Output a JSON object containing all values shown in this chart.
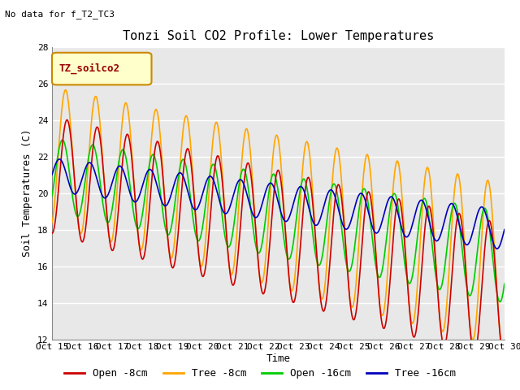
{
  "title": "Tonzi Soil CO2 Profile: Lower Temperatures",
  "subtitle": "No data for f_T2_TC3",
  "ylabel": "Soil Temperatures (C)",
  "xlabel": "Time",
  "ylim": [
    12,
    28
  ],
  "xlim": [
    0,
    15
  ],
  "xtick_labels": [
    "Oct 15",
    "Oct 16",
    "Oct 17",
    "Oct 18",
    "Oct 19",
    "Oct 20",
    "Oct 21",
    "Oct 22",
    "Oct 23",
    "Oct 24",
    "Oct 25",
    "Oct 26",
    "Oct 27",
    "Oct 28",
    "Oct 29",
    "Oct 30"
  ],
  "ytick_vals": [
    12,
    14,
    16,
    18,
    20,
    22,
    24,
    26,
    28
  ],
  "legend_label": "TZ_soilco2",
  "plot_bg_color": "#e8e8e8",
  "fig_bg_color": "#ffffff",
  "title_fontsize": 11,
  "axis_label_fontsize": 9,
  "tick_fontsize": 8,
  "legend_fontsize": 9,
  "series": {
    "open_8cm": {
      "color": "#cc0000",
      "label": "Open -8cm",
      "linewidth": 1.2
    },
    "tree_8cm": {
      "color": "#ffa500",
      "label": "Tree -8cm",
      "linewidth": 1.2
    },
    "open_16cm": {
      "color": "#00cc00",
      "label": "Open -16cm",
      "linewidth": 1.2
    },
    "tree_16cm": {
      "color": "#0000bb",
      "label": "Tree -16cm",
      "linewidth": 1.2
    }
  }
}
